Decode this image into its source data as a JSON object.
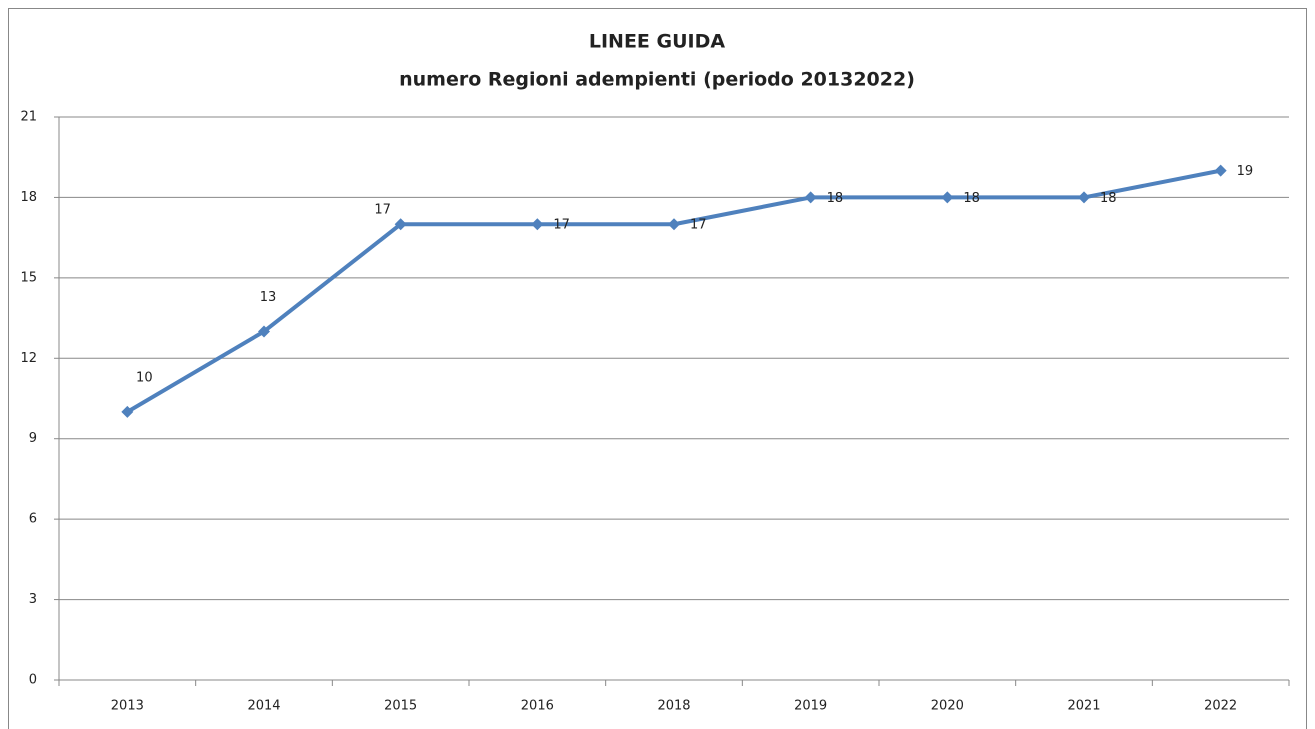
{
  "chart_data": {
    "type": "line",
    "title": "LINEE GUIDA",
    "subtitle": "numero Regioni adempienti (periodo 20132022)",
    "categories": [
      "2013",
      "2014",
      "2015",
      "2016",
      "2018",
      "2019",
      "2020",
      "2021",
      "2022"
    ],
    "series": [
      {
        "name": "Regioni adempienti",
        "color": "#4f81bd",
        "values": [
          10,
          13,
          17,
          17,
          17,
          18,
          18,
          18,
          19
        ]
      }
    ],
    "ylim": [
      0,
      21
    ],
    "yticks": [
      0,
      3,
      6,
      9,
      12,
      15,
      18,
      21
    ],
    "grid": true,
    "legend": false
  }
}
